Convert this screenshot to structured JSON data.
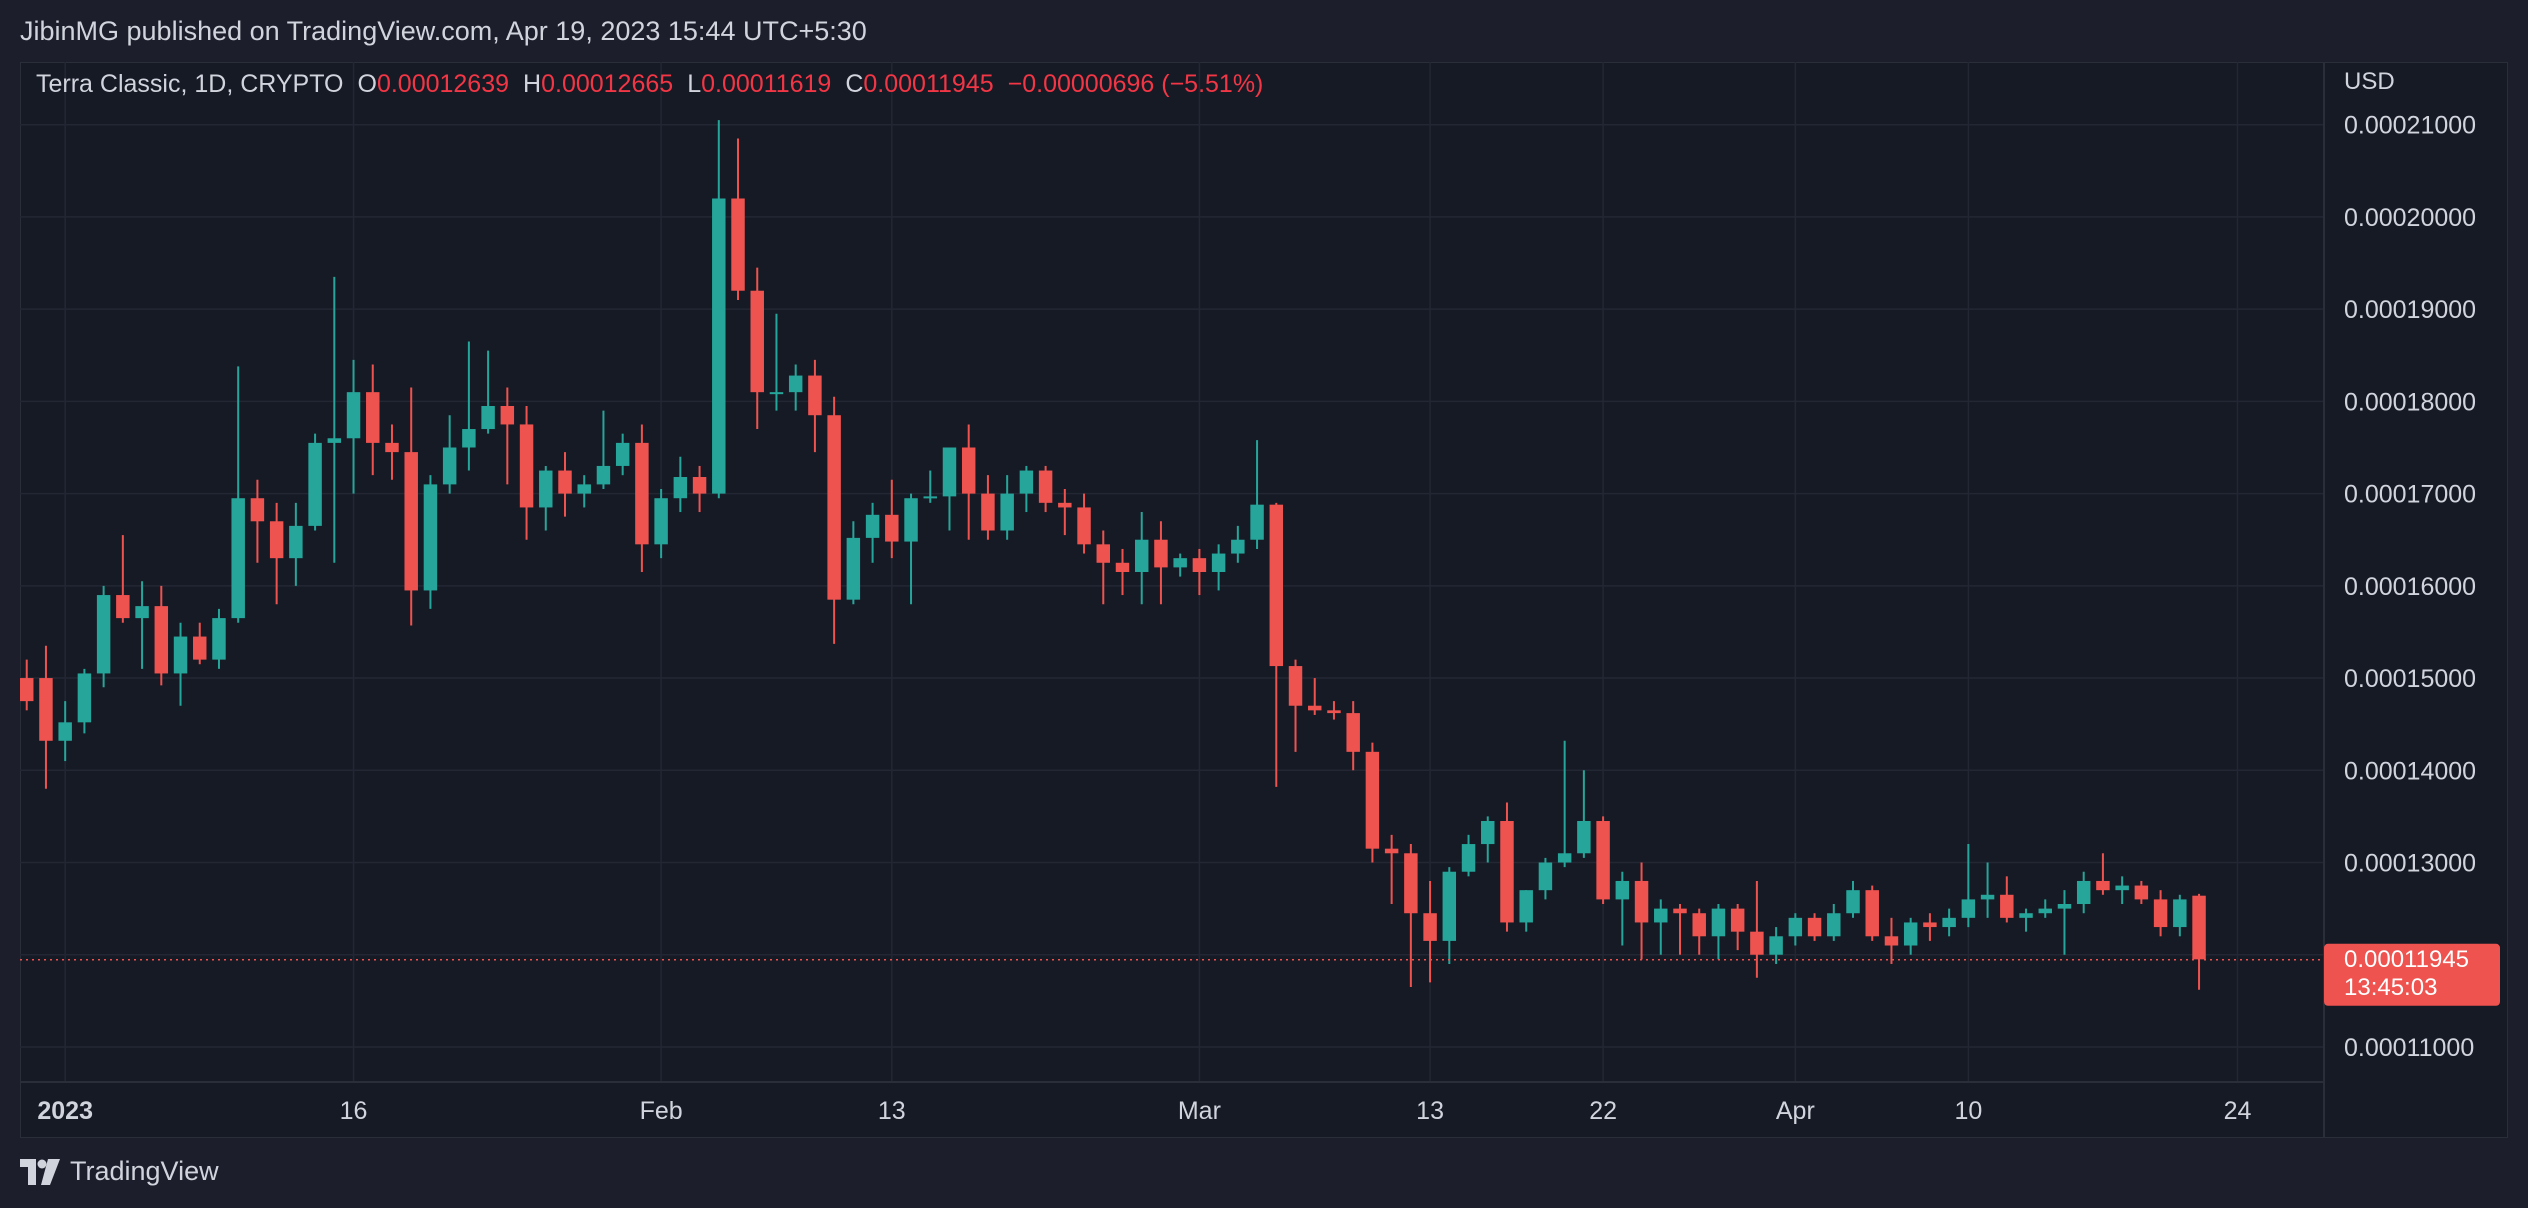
{
  "publication": "JibinMG published on TradingView.com, Apr 19, 2023 15:44 UTC+5:30",
  "header": {
    "symbol": "Terra Classic, 1D, CRYPTO",
    "open_label": "O",
    "open": "0.00012639",
    "high_label": "H",
    "high": "0.00012665",
    "low_label": "L",
    "low": "0.00011619",
    "close_label": "C",
    "close": "0.00011945",
    "change": "−0.00000696 (−5.51%)"
  },
  "price_tag": {
    "price": "0.00011945",
    "countdown": "13:45:03"
  },
  "footer": {
    "brand": "TradingView",
    "logo_icon": "tradingview-logo-icon"
  },
  "colors": {
    "up": "#26a69a",
    "down": "#ef5350",
    "grid": "#232734",
    "text": "#d1d4dc",
    "background": "#161a25",
    "price_line": "#ef5350"
  },
  "chart_data": {
    "type": "candlestick",
    "title": "Terra Classic, 1D, CRYPTO",
    "y_axis_label": "USD",
    "y_axis_side": "right",
    "y_ticks": [
      "0.00011000",
      "0.00012000",
      "0.00013000",
      "0.00014000",
      "0.00015000",
      "0.00016000",
      "0.00017000",
      "0.00018000",
      "0.00019000",
      "0.00020000",
      "0.00021000"
    ],
    "x_ticks": [
      {
        "label": "2023",
        "bold": true,
        "index": 2
      },
      {
        "label": "16",
        "index": 17
      },
      {
        "label": "Feb",
        "index": 33
      },
      {
        "label": "13",
        "index": 45
      },
      {
        "label": "Mar",
        "index": 61
      },
      {
        "label": "13",
        "index": 73
      },
      {
        "label": "22",
        "index": 82
      },
      {
        "label": "Apr",
        "index": 92
      },
      {
        "label": "10",
        "index": 101
      },
      {
        "label": "24",
        "index": 115
      }
    ],
    "ylim": [
      0.0001062,
      0.0002168
    ],
    "xlim": [
      -0.35,
      119.5
    ],
    "grid": true,
    "last_price": 0.00011945,
    "candles": [
      {
        "o": 0.00015,
        "h": 0.000152,
        "l": 0.0001465,
        "c": 0.0001475
      },
      {
        "o": 0.00015,
        "h": 0.0001535,
        "l": 0.000138,
        "c": 0.0001432
      },
      {
        "o": 0.0001432,
        "h": 0.0001475,
        "l": 0.000141,
        "c": 0.0001452
      },
      {
        "o": 0.0001452,
        "h": 0.000151,
        "l": 0.000144,
        "c": 0.0001505
      },
      {
        "o": 0.0001505,
        "h": 0.00016,
        "l": 0.000149,
        "c": 0.000159
      },
      {
        "o": 0.000159,
        "h": 0.0001655,
        "l": 0.000156,
        "c": 0.0001565
      },
      {
        "o": 0.0001565,
        "h": 0.0001605,
        "l": 0.000151,
        "c": 0.0001578
      },
      {
        "o": 0.0001578,
        "h": 0.00016,
        "l": 0.0001492,
        "c": 0.0001505
      },
      {
        "o": 0.0001505,
        "h": 0.000156,
        "l": 0.000147,
        "c": 0.0001545
      },
      {
        "o": 0.0001545,
        "h": 0.000156,
        "l": 0.0001515,
        "c": 0.000152
      },
      {
        "o": 0.000152,
        "h": 0.0001575,
        "l": 0.000151,
        "c": 0.0001565
      },
      {
        "o": 0.0001565,
        "h": 0.0001838,
        "l": 0.000156,
        "c": 0.0001695
      },
      {
        "o": 0.0001695,
        "h": 0.0001715,
        "l": 0.0001625,
        "c": 0.000167
      },
      {
        "o": 0.000167,
        "h": 0.000169,
        "l": 0.000158,
        "c": 0.000163
      },
      {
        "o": 0.000163,
        "h": 0.000169,
        "l": 0.00016,
        "c": 0.0001665
      },
      {
        "o": 0.0001665,
        "h": 0.0001765,
        "l": 0.000166,
        "c": 0.0001755
      },
      {
        "o": 0.0001755,
        "h": 0.0001935,
        "l": 0.0001625,
        "c": 0.000176
      },
      {
        "o": 0.000176,
        "h": 0.0001845,
        "l": 0.00017,
        "c": 0.000181
      },
      {
        "o": 0.000181,
        "h": 0.000184,
        "l": 0.000172,
        "c": 0.0001755
      },
      {
        "o": 0.0001755,
        "h": 0.0001775,
        "l": 0.0001715,
        "c": 0.0001745
      },
      {
        "o": 0.0001745,
        "h": 0.0001815,
        "l": 0.0001557,
        "c": 0.0001595
      },
      {
        "o": 0.0001595,
        "h": 0.000172,
        "l": 0.0001575,
        "c": 0.000171
      },
      {
        "o": 0.000171,
        "h": 0.0001785,
        "l": 0.00017,
        "c": 0.000175
      },
      {
        "o": 0.000175,
        "h": 0.0001865,
        "l": 0.0001725,
        "c": 0.000177
      },
      {
        "o": 0.000177,
        "h": 0.0001855,
        "l": 0.0001765,
        "c": 0.0001795
      },
      {
        "o": 0.0001795,
        "h": 0.0001815,
        "l": 0.000171,
        "c": 0.0001775
      },
      {
        "o": 0.0001775,
        "h": 0.0001795,
        "l": 0.000165,
        "c": 0.0001685
      },
      {
        "o": 0.0001685,
        "h": 0.000173,
        "l": 0.000166,
        "c": 0.0001725
      },
      {
        "o": 0.0001725,
        "h": 0.0001745,
        "l": 0.0001675,
        "c": 0.00017
      },
      {
        "o": 0.00017,
        "h": 0.000172,
        "l": 0.0001685,
        "c": 0.000171
      },
      {
        "o": 0.000171,
        "h": 0.000179,
        "l": 0.0001705,
        "c": 0.000173
      },
      {
        "o": 0.000173,
        "h": 0.0001765,
        "l": 0.000172,
        "c": 0.0001755
      },
      {
        "o": 0.0001755,
        "h": 0.0001775,
        "l": 0.0001615,
        "c": 0.0001645
      },
      {
        "o": 0.0001645,
        "h": 0.0001705,
        "l": 0.000163,
        "c": 0.0001695
      },
      {
        "o": 0.0001695,
        "h": 0.000174,
        "l": 0.000168,
        "c": 0.0001718
      },
      {
        "o": 0.0001718,
        "h": 0.000173,
        "l": 0.000168,
        "c": 0.00017
      },
      {
        "o": 0.00017,
        "h": 0.0002105,
        "l": 0.0001695,
        "c": 0.000202
      },
      {
        "o": 0.000202,
        "h": 0.0002085,
        "l": 0.000191,
        "c": 0.000192
      },
      {
        "o": 0.000192,
        "h": 0.0001945,
        "l": 0.000177,
        "c": 0.000181
      },
      {
        "o": 0.000181,
        "h": 0.0001895,
        "l": 0.000179,
        "c": 0.000181
      },
      {
        "o": 0.000181,
        "h": 0.000184,
        "l": 0.000179,
        "c": 0.0001828
      },
      {
        "o": 0.0001828,
        "h": 0.0001845,
        "l": 0.0001745,
        "c": 0.0001785
      },
      {
        "o": 0.0001785,
        "h": 0.0001805,
        "l": 0.0001537,
        "c": 0.0001585
      },
      {
        "o": 0.0001585,
        "h": 0.000167,
        "l": 0.000158,
        "c": 0.0001652
      },
      {
        "o": 0.0001652,
        "h": 0.000169,
        "l": 0.0001625,
        "c": 0.0001677
      },
      {
        "o": 0.0001677,
        "h": 0.0001715,
        "l": 0.000163,
        "c": 0.0001648
      },
      {
        "o": 0.0001648,
        "h": 0.00017,
        "l": 0.000158,
        "c": 0.0001695
      },
      {
        "o": 0.0001695,
        "h": 0.0001725,
        "l": 0.000169,
        "c": 0.0001697
      },
      {
        "o": 0.0001697,
        "h": 0.000175,
        "l": 0.000166,
        "c": 0.000175
      },
      {
        "o": 0.000175,
        "h": 0.0001775,
        "l": 0.000165,
        "c": 0.00017
      },
      {
        "o": 0.00017,
        "h": 0.000172,
        "l": 0.000165,
        "c": 0.000166
      },
      {
        "o": 0.000166,
        "h": 0.000172,
        "l": 0.000165,
        "c": 0.00017
      },
      {
        "o": 0.00017,
        "h": 0.000173,
        "l": 0.000168,
        "c": 0.0001725
      },
      {
        "o": 0.0001725,
        "h": 0.000173,
        "l": 0.000168,
        "c": 0.000169
      },
      {
        "o": 0.000169,
        "h": 0.0001705,
        "l": 0.0001655,
        "c": 0.0001685
      },
      {
        "o": 0.0001685,
        "h": 0.00017,
        "l": 0.0001635,
        "c": 0.0001645
      },
      {
        "o": 0.0001645,
        "h": 0.000166,
        "l": 0.000158,
        "c": 0.0001625
      },
      {
        "o": 0.0001625,
        "h": 0.000164,
        "l": 0.000159,
        "c": 0.0001615
      },
      {
        "o": 0.0001615,
        "h": 0.000168,
        "l": 0.000158,
        "c": 0.000165
      },
      {
        "o": 0.000165,
        "h": 0.000167,
        "l": 0.000158,
        "c": 0.000162
      },
      {
        "o": 0.000162,
        "h": 0.0001635,
        "l": 0.000161,
        "c": 0.000163
      },
      {
        "o": 0.000163,
        "h": 0.000164,
        "l": 0.000159,
        "c": 0.0001615
      },
      {
        "o": 0.0001615,
        "h": 0.0001645,
        "l": 0.0001595,
        "c": 0.0001635
      },
      {
        "o": 0.0001635,
        "h": 0.0001665,
        "l": 0.0001625,
        "c": 0.000165
      },
      {
        "o": 0.000165,
        "h": 0.0001758,
        "l": 0.000164,
        "c": 0.0001688
      },
      {
        "o": 0.0001688,
        "h": 0.000169,
        "l": 0.0001382,
        "c": 0.0001513
      },
      {
        "o": 0.0001513,
        "h": 0.000152,
        "l": 0.000142,
        "c": 0.000147
      },
      {
        "o": 0.000147,
        "h": 0.00015,
        "l": 0.000146,
        "c": 0.0001465
      },
      {
        "o": 0.0001465,
        "h": 0.0001475,
        "l": 0.0001455,
        "c": 0.0001462
      },
      {
        "o": 0.0001462,
        "h": 0.0001475,
        "l": 0.00014,
        "c": 0.000142
      },
      {
        "o": 0.000142,
        "h": 0.000143,
        "l": 0.00013,
        "c": 0.0001315
      },
      {
        "o": 0.0001315,
        "h": 0.000133,
        "l": 0.0001255,
        "c": 0.000131
      },
      {
        "o": 0.000131,
        "h": 0.000132,
        "l": 0.0001165,
        "c": 0.0001245
      },
      {
        "o": 0.0001245,
        "h": 0.000128,
        "l": 0.000117,
        "c": 0.0001215
      },
      {
        "o": 0.0001215,
        "h": 0.0001295,
        "l": 0.000119,
        "c": 0.000129
      },
      {
        "o": 0.000129,
        "h": 0.000133,
        "l": 0.0001285,
        "c": 0.000132
      },
      {
        "o": 0.000132,
        "h": 0.000135,
        "l": 0.00013,
        "c": 0.0001345
      },
      {
        "o": 0.0001345,
        "h": 0.0001365,
        "l": 0.0001225,
        "c": 0.0001235
      },
      {
        "o": 0.0001235,
        "h": 0.000127,
        "l": 0.0001225,
        "c": 0.000127
      },
      {
        "o": 0.000127,
        "h": 0.0001305,
        "l": 0.000126,
        "c": 0.00013
      },
      {
        "o": 0.00013,
        "h": 0.0001432,
        "l": 0.0001295,
        "c": 0.000131
      },
      {
        "o": 0.000131,
        "h": 0.00014,
        "l": 0.0001305,
        "c": 0.0001345
      },
      {
        "o": 0.0001345,
        "h": 0.000135,
        "l": 0.0001255,
        "c": 0.000126
      },
      {
        "o": 0.000126,
        "h": 0.000129,
        "l": 0.000121,
        "c": 0.000128
      },
      {
        "o": 0.000128,
        "h": 0.00013,
        "l": 0.0001195,
        "c": 0.0001235
      },
      {
        "o": 0.0001235,
        "h": 0.000126,
        "l": 0.00012,
        "c": 0.000125
      },
      {
        "o": 0.000125,
        "h": 0.0001255,
        "l": 0.00012,
        "c": 0.0001245
      },
      {
        "o": 0.0001245,
        "h": 0.000125,
        "l": 0.00012,
        "c": 0.000122
      },
      {
        "o": 0.000122,
        "h": 0.0001255,
        "l": 0.0001195,
        "c": 0.000125
      },
      {
        "o": 0.000125,
        "h": 0.0001255,
        "l": 0.0001205,
        "c": 0.0001225
      },
      {
        "o": 0.0001225,
        "h": 0.000128,
        "l": 0.0001175,
        "c": 0.00012
      },
      {
        "o": 0.00012,
        "h": 0.000123,
        "l": 0.000119,
        "c": 0.000122
      },
      {
        "o": 0.000122,
        "h": 0.0001245,
        "l": 0.000121,
        "c": 0.000124
      },
      {
        "o": 0.000124,
        "h": 0.0001245,
        "l": 0.0001215,
        "c": 0.000122
      },
      {
        "o": 0.000122,
        "h": 0.0001255,
        "l": 0.0001215,
        "c": 0.0001245
      },
      {
        "o": 0.0001245,
        "h": 0.000128,
        "l": 0.000124,
        "c": 0.000127
      },
      {
        "o": 0.000127,
        "h": 0.0001275,
        "l": 0.0001215,
        "c": 0.000122
      },
      {
        "o": 0.000122,
        "h": 0.000124,
        "l": 0.000119,
        "c": 0.000121
      },
      {
        "o": 0.000121,
        "h": 0.000124,
        "l": 0.00012,
        "c": 0.0001235
      },
      {
        "o": 0.0001235,
        "h": 0.0001245,
        "l": 0.0001215,
        "c": 0.000123
      },
      {
        "o": 0.000123,
        "h": 0.000125,
        "l": 0.000122,
        "c": 0.000124
      },
      {
        "o": 0.000124,
        "h": 0.000132,
        "l": 0.000123,
        "c": 0.000126
      },
      {
        "o": 0.000126,
        "h": 0.00013,
        "l": 0.000124,
        "c": 0.0001265
      },
      {
        "o": 0.0001265,
        "h": 0.0001285,
        "l": 0.0001235,
        "c": 0.000124
      },
      {
        "o": 0.000124,
        "h": 0.000125,
        "l": 0.0001225,
        "c": 0.0001245
      },
      {
        "o": 0.0001245,
        "h": 0.000126,
        "l": 0.000124,
        "c": 0.000125
      },
      {
        "o": 0.000125,
        "h": 0.000127,
        "l": 0.00012,
        "c": 0.0001255
      },
      {
        "o": 0.0001255,
        "h": 0.000129,
        "l": 0.0001245,
        "c": 0.000128
      },
      {
        "o": 0.000128,
        "h": 0.000131,
        "l": 0.0001265,
        "c": 0.000127
      },
      {
        "o": 0.000127,
        "h": 0.0001285,
        "l": 0.0001255,
        "c": 0.0001275
      },
      {
        "o": 0.0001275,
        "h": 0.000128,
        "l": 0.0001255,
        "c": 0.000126
      },
      {
        "o": 0.000126,
        "h": 0.000127,
        "l": 0.000122,
        "c": 0.000123
      },
      {
        "o": 0.000123,
        "h": 0.0001265,
        "l": 0.000122,
        "c": 0.000126
      },
      {
        "o": 0.0001264,
        "h": 0.0001266,
        "l": 0.0001162,
        "c": 0.0001195
      }
    ]
  }
}
